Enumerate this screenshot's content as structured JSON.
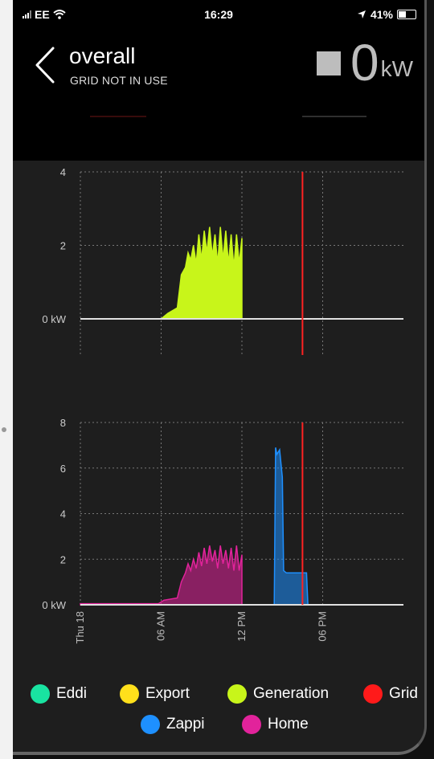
{
  "status": {
    "carrier": "EE",
    "time": "16:29",
    "battery": "41%"
  },
  "header": {
    "title": "overall",
    "subtitle": "GRID NOT IN USE",
    "power_value": "0",
    "power_unit": "kW"
  },
  "colors": {
    "eddi": "#19e3a1",
    "export": "#ffe01b",
    "generation": "#c8f51a",
    "grid": "#ff1a1a",
    "zappi": "#1e90ff",
    "home": "#e2239b"
  },
  "legend": [
    {
      "key": "eddi",
      "label": "Eddi"
    },
    {
      "key": "export",
      "label": "Export"
    },
    {
      "key": "generation",
      "label": "Generation"
    },
    {
      "key": "grid",
      "label": "Grid"
    },
    {
      "key": "zappi",
      "label": "Zappi"
    },
    {
      "key": "home",
      "label": "Home"
    }
  ],
  "chart_data": [
    {
      "type": "area",
      "yticks": [
        "4",
        "2",
        "0 kW"
      ],
      "ylim": [
        0,
        4
      ],
      "xlim": [
        0,
        24
      ],
      "grid": true,
      "now_marker_hour": 16.5,
      "series": [
        {
          "name": "Generation",
          "color_key": "generation",
          "x": [
            0,
            6,
            6.5,
            7.2,
            7.5,
            7.8,
            8.0,
            8.2,
            8.4,
            8.6,
            8.8,
            9.0,
            9.2,
            9.4,
            9.6,
            9.8,
            10.0,
            10.2,
            10.4,
            10.6,
            10.8,
            11.0,
            11.2,
            11.4,
            11.6,
            11.8,
            12.0,
            12.0,
            24
          ],
          "y": [
            0,
            0,
            0.15,
            0.3,
            1.2,
            1.4,
            1.8,
            1.6,
            2.0,
            1.5,
            2.3,
            1.6,
            2.4,
            1.8,
            2.5,
            1.7,
            2.3,
            1.5,
            2.5,
            1.6,
            2.4,
            1.5,
            2.3,
            1.4,
            2.3,
            1.5,
            2.2,
            0,
            0
          ]
        }
      ]
    },
    {
      "type": "area",
      "yticks": [
        "8",
        "6",
        "4",
        "2",
        "0 kW"
      ],
      "ylim": [
        0,
        8
      ],
      "xlim": [
        0,
        24
      ],
      "grid": true,
      "now_marker_hour": 16.5,
      "xtick_labels": [
        {
          "hour": 0,
          "label": "Thu 18"
        },
        {
          "hour": 6,
          "label": "06 AM"
        },
        {
          "hour": 12,
          "label": "12 PM"
        },
        {
          "hour": 18,
          "label": "06 PM"
        }
      ],
      "series": [
        {
          "name": "Home",
          "color_key": "home",
          "x": [
            0,
            5.8,
            6.2,
            7.2,
            7.5,
            7.8,
            8.0,
            8.2,
            8.4,
            8.6,
            8.8,
            9.0,
            9.2,
            9.4,
            9.6,
            9.8,
            10.0,
            10.2,
            10.4,
            10.6,
            10.8,
            11.0,
            11.2,
            11.4,
            11.6,
            11.8,
            12.0,
            12.0,
            24
          ],
          "y": [
            0.05,
            0.05,
            0.2,
            0.3,
            1.0,
            1.4,
            1.8,
            1.5,
            2.0,
            1.6,
            2.3,
            1.7,
            2.5,
            1.8,
            2.6,
            1.9,
            2.4,
            1.6,
            2.6,
            1.8,
            2.4,
            1.6,
            2.5,
            1.5,
            2.6,
            1.5,
            2.2,
            0,
            0
          ]
        },
        {
          "name": "Zappi",
          "color_key": "zappi",
          "x": [
            14.4,
            14.5,
            14.6,
            14.8,
            15.0,
            15.1,
            15.3,
            15.5,
            16.8,
            16.9
          ],
          "y": [
            0,
            6.9,
            6.6,
            6.8,
            5.6,
            1.5,
            1.4,
            1.4,
            1.4,
            0
          ]
        }
      ]
    }
  ]
}
